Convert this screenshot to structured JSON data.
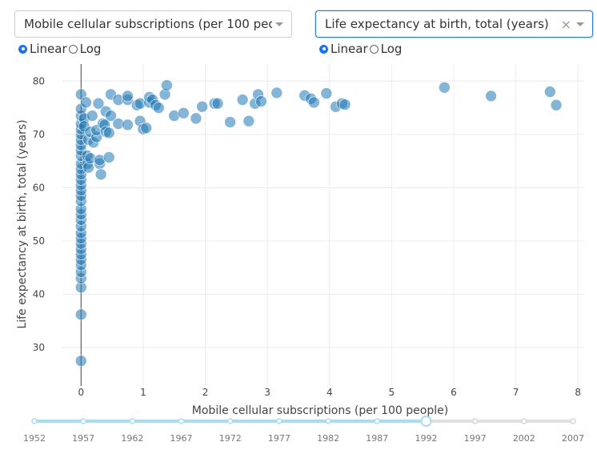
{
  "controls": {
    "x_dropdown": {
      "value": "Mobile cellular subscriptions (per 100 peo..."
    },
    "y_dropdown": {
      "value": "Life expectancy at birth, total (years)",
      "clear": "×"
    },
    "x_scale": {
      "linear": "Linear",
      "log": "Log",
      "selected": "Linear"
    },
    "y_scale": {
      "linear": "Linear",
      "log": "Log",
      "selected": "Linear"
    }
  },
  "colors": {
    "marker": "#1f77b4",
    "slider_active": "#a8dcf0",
    "slider_inactive": "#e0e0e0"
  },
  "chart_data": {
    "type": "scatter",
    "xlabel": "Mobile cellular subscriptions (per 100 people)",
    "ylabel": "Life expectancy at birth, total (years)",
    "xlim": [
      -0.3,
      8.1
    ],
    "ylim": [
      22.8,
      83.2
    ],
    "xticks": [
      0,
      1,
      2,
      3,
      4,
      5,
      6,
      7,
      8
    ],
    "yticks": [
      30,
      40,
      50,
      60,
      70,
      80
    ],
    "points": [
      [
        0,
        27.5
      ],
      [
        0,
        36.2
      ],
      [
        0,
        41.3
      ],
      [
        0,
        43.0
      ],
      [
        0,
        44.2
      ],
      [
        0,
        45.5
      ],
      [
        0,
        46.5
      ],
      [
        0,
        47.5
      ],
      [
        0,
        48.5
      ],
      [
        0,
        49.5
      ],
      [
        0,
        50.5
      ],
      [
        0,
        51.5
      ],
      [
        0,
        52.8
      ],
      [
        0,
        54.0
      ],
      [
        0,
        55.0
      ],
      [
        0,
        56.0
      ],
      [
        0,
        57.5
      ],
      [
        0,
        58.5
      ],
      [
        0,
        59.5
      ],
      [
        0,
        60.5
      ],
      [
        0,
        61.5
      ],
      [
        0,
        62.5
      ],
      [
        0,
        63.5
      ],
      [
        0,
        64.5
      ],
      [
        0,
        66.0
      ],
      [
        0,
        67.0
      ],
      [
        0,
        68.0
      ],
      [
        0,
        69.0
      ],
      [
        0,
        70.0
      ],
      [
        0,
        71.0
      ],
      [
        0,
        72.0
      ],
      [
        0,
        73.5
      ],
      [
        0,
        74.8
      ],
      [
        0,
        77.5
      ],
      [
        0.05,
        73.0
      ],
      [
        0.05,
        71.5
      ],
      [
        0.08,
        76.0
      ],
      [
        0.1,
        64.5
      ],
      [
        0.1,
        66.0
      ],
      [
        0.12,
        63.8
      ],
      [
        0.12,
        69.0
      ],
      [
        0.15,
        65.5
      ],
      [
        0.15,
        70.5
      ],
      [
        0.18,
        73.5
      ],
      [
        0.2,
        68.5
      ],
      [
        0.25,
        69.5
      ],
      [
        0.25,
        70.8
      ],
      [
        0.28,
        75.8
      ],
      [
        0.3,
        64.5
      ],
      [
        0.3,
        65.2
      ],
      [
        0.32,
        62.5
      ],
      [
        0.35,
        72.0
      ],
      [
        0.38,
        71.8
      ],
      [
        0.4,
        70.5
      ],
      [
        0.4,
        74.3
      ],
      [
        0.45,
        70.3
      ],
      [
        0.45,
        65.7
      ],
      [
        0.48,
        73.5
      ],
      [
        0.48,
        77.5
      ],
      [
        0.6,
        76.5
      ],
      [
        0.6,
        72.0
      ],
      [
        0.75,
        76.5
      ],
      [
        0.75,
        77.2
      ],
      [
        0.75,
        71.8
      ],
      [
        0.9,
        75.5
      ],
      [
        0.95,
        75.8
      ],
      [
        0.95,
        72.5
      ],
      [
        1.0,
        71.0
      ],
      [
        1.05,
        71.2
      ],
      [
        1.1,
        76.0
      ],
      [
        1.1,
        77.0
      ],
      [
        1.15,
        76.5
      ],
      [
        1.2,
        75.5
      ],
      [
        1.25,
        75.0
      ],
      [
        1.35,
        77.5
      ],
      [
        1.38,
        79.2
      ],
      [
        1.5,
        73.5
      ],
      [
        1.65,
        74.0
      ],
      [
        1.85,
        73.0
      ],
      [
        1.95,
        75.2
      ],
      [
        2.15,
        75.8
      ],
      [
        2.2,
        75.8
      ],
      [
        2.4,
        72.3
      ],
      [
        2.6,
        76.5
      ],
      [
        2.7,
        72.5
      ],
      [
        2.8,
        75.8
      ],
      [
        2.85,
        77.5
      ],
      [
        2.9,
        76.2
      ],
      [
        3.15,
        77.8
      ],
      [
        3.6,
        77.3
      ],
      [
        3.7,
        76.7
      ],
      [
        3.75,
        76.0
      ],
      [
        3.95,
        77.7
      ],
      [
        4.1,
        75.2
      ],
      [
        4.2,
        75.8
      ],
      [
        4.25,
        75.6
      ],
      [
        5.85,
        78.8
      ],
      [
        6.6,
        77.2
      ],
      [
        7.55,
        78.0
      ],
      [
        7.65,
        75.5
      ]
    ]
  },
  "slider": {
    "years": [
      "1952",
      "1957",
      "1962",
      "1967",
      "1972",
      "1977",
      "1982",
      "1987",
      "1992",
      "1997",
      "2002",
      "2007"
    ],
    "selected": "1992"
  }
}
